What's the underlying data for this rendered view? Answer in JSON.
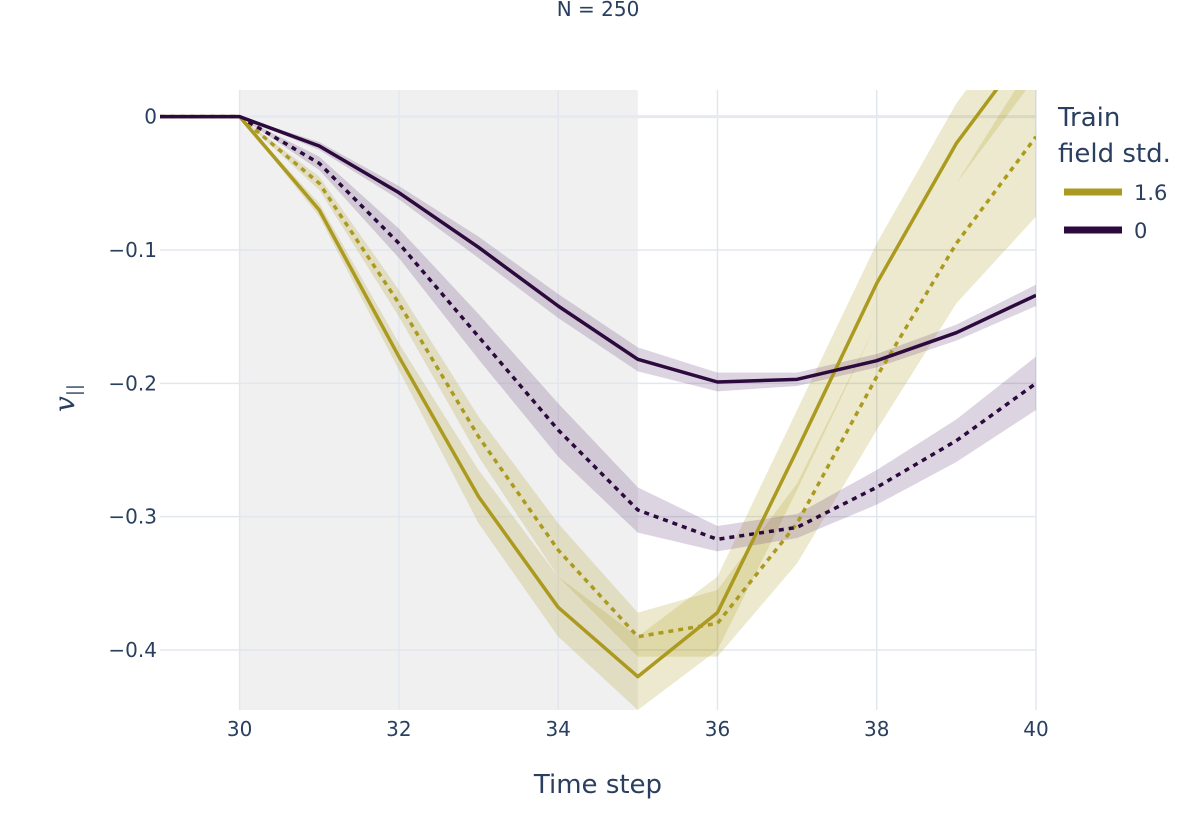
{
  "chart_data": {
    "type": "line",
    "title": "N = 250",
    "xlabel": "Time step",
    "ylabel": "v",
    "ylabel_subscript": "||",
    "xlim": [
      29,
      40
    ],
    "ylim": [
      -0.445,
      0.02
    ],
    "x_ticks": [
      30,
      32,
      34,
      36,
      38,
      40
    ],
    "y_ticks": [
      0,
      -0.1,
      -0.2,
      -0.3,
      -0.4
    ],
    "y_tick_labels": [
      "0",
      "−0.1",
      "−0.2",
      "−0.3",
      "−0.4"
    ],
    "shaded_region": [
      30,
      35
    ],
    "grid": true,
    "legend": {
      "title_lines": [
        "Train",
        "field std."
      ],
      "placement": "right",
      "entries": [
        {
          "label": "1.6",
          "color": "#ab9a1f"
        },
        {
          "label": "0",
          "color": "#2d0a3d"
        }
      ]
    },
    "series": [
      {
        "group": "1.6",
        "dash": "solid",
        "color": "#ab9a1f",
        "band": "rgba(171,154,31,0.22)",
        "x": [
          29,
          30,
          31,
          32,
          33,
          34,
          35,
          36,
          37,
          38,
          39,
          40
        ],
        "y": [
          0,
          0,
          -0.07,
          -0.18,
          -0.285,
          -0.368,
          -0.42,
          -0.372,
          -0.25,
          -0.125,
          -0.02,
          0.06
        ],
        "lower": [
          0,
          0,
          -0.075,
          -0.19,
          -0.305,
          -0.39,
          -0.445,
          -0.4,
          -0.28,
          -0.155,
          -0.05,
          0.03
        ],
        "upper": [
          0,
          0,
          -0.065,
          -0.17,
          -0.265,
          -0.345,
          -0.39,
          -0.345,
          -0.22,
          -0.095,
          0.01,
          0.09
        ]
      },
      {
        "group": "1.6",
        "dash": "dot",
        "color": "#ab9a1f",
        "band": "rgba(171,154,31,0.22)",
        "x": [
          29,
          30,
          31,
          32,
          33,
          34,
          35,
          36,
          37,
          38,
          39,
          40
        ],
        "y": [
          0,
          0,
          -0.05,
          -0.14,
          -0.24,
          -0.325,
          -0.39,
          -0.38,
          -0.305,
          -0.195,
          -0.095,
          -0.015
        ],
        "lower": [
          0,
          0,
          -0.055,
          -0.15,
          -0.255,
          -0.345,
          -0.405,
          -0.405,
          -0.335,
          -0.235,
          -0.14,
          -0.075
        ],
        "upper": [
          0,
          0,
          -0.045,
          -0.13,
          -0.225,
          -0.305,
          -0.372,
          -0.355,
          -0.275,
          -0.155,
          -0.05,
          0.045
        ]
      },
      {
        "group": "0",
        "dash": "solid",
        "color": "#2d0a3d",
        "band": "rgba(100,60,120,0.22)",
        "x": [
          29,
          30,
          31,
          32,
          33,
          34,
          35,
          36,
          37,
          38,
          39,
          40
        ],
        "y": [
          0,
          0,
          -0.022,
          -0.057,
          -0.098,
          -0.142,
          -0.182,
          -0.199,
          -0.197,
          -0.183,
          -0.162,
          -0.134
        ],
        "lower": [
          0,
          0,
          -0.025,
          -0.062,
          -0.106,
          -0.151,
          -0.191,
          -0.206,
          -0.202,
          -0.188,
          -0.168,
          -0.142
        ],
        "upper": [
          0,
          0,
          -0.019,
          -0.052,
          -0.09,
          -0.133,
          -0.173,
          -0.192,
          -0.192,
          -0.178,
          -0.156,
          -0.126
        ]
      },
      {
        "group": "0",
        "dash": "dot",
        "color": "#2d0a3d",
        "band": "rgba(100,60,120,0.22)",
        "x": [
          29,
          30,
          31,
          32,
          33,
          34,
          35,
          36,
          37,
          38,
          39,
          40
        ],
        "y": [
          0,
          0,
          -0.035,
          -0.095,
          -0.165,
          -0.235,
          -0.295,
          -0.317,
          -0.308,
          -0.278,
          -0.243,
          -0.2
        ],
        "lower": [
          0,
          0,
          -0.04,
          -0.106,
          -0.182,
          -0.255,
          -0.312,
          -0.326,
          -0.316,
          -0.291,
          -0.259,
          -0.22
        ],
        "upper": [
          0,
          0,
          -0.03,
          -0.084,
          -0.148,
          -0.215,
          -0.278,
          -0.307,
          -0.298,
          -0.265,
          -0.227,
          -0.18
        ]
      }
    ]
  }
}
